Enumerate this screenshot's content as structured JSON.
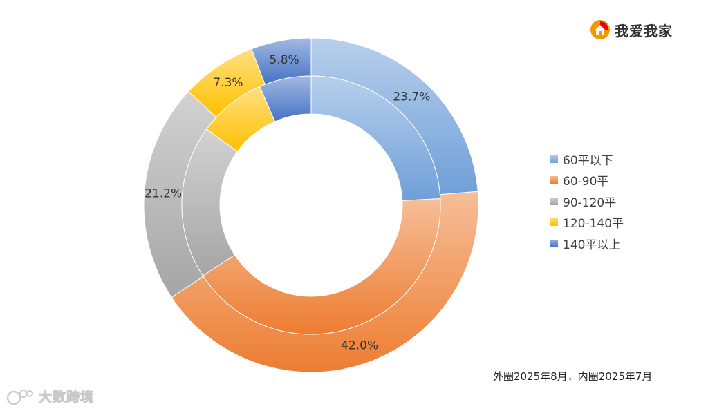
{
  "brand": {
    "name": "我爱我家",
    "logo_icon": "house-logo-icon"
  },
  "watermark": {
    "name": "大数跨境",
    "logo_icon": "watermark-logo-icon"
  },
  "note": "外圈2025年8月，内圈2025年7月",
  "chart_data": {
    "type": "pie",
    "subtype": "double-donut",
    "categories": [
      "60平以下",
      "60-90平",
      "90-120平",
      "120-140平",
      "140平以上"
    ],
    "colors": [
      "#6f9fd8",
      "#ed7d31",
      "#a5a5a5",
      "#ffc000",
      "#4472c4"
    ],
    "legend_position": "right",
    "series": [
      {
        "ring": "outer",
        "values": [
          23.7,
          42.0,
          21.2,
          7.3,
          5.8
        ],
        "labels": [
          "23.7%",
          "42.0%",
          "21.2%",
          "7.3%",
          "5.8%"
        ]
      },
      {
        "ring": "inner",
        "values": [
          24.2,
          41.6,
          19.2,
          8.5,
          6.5
        ]
      }
    ]
  }
}
